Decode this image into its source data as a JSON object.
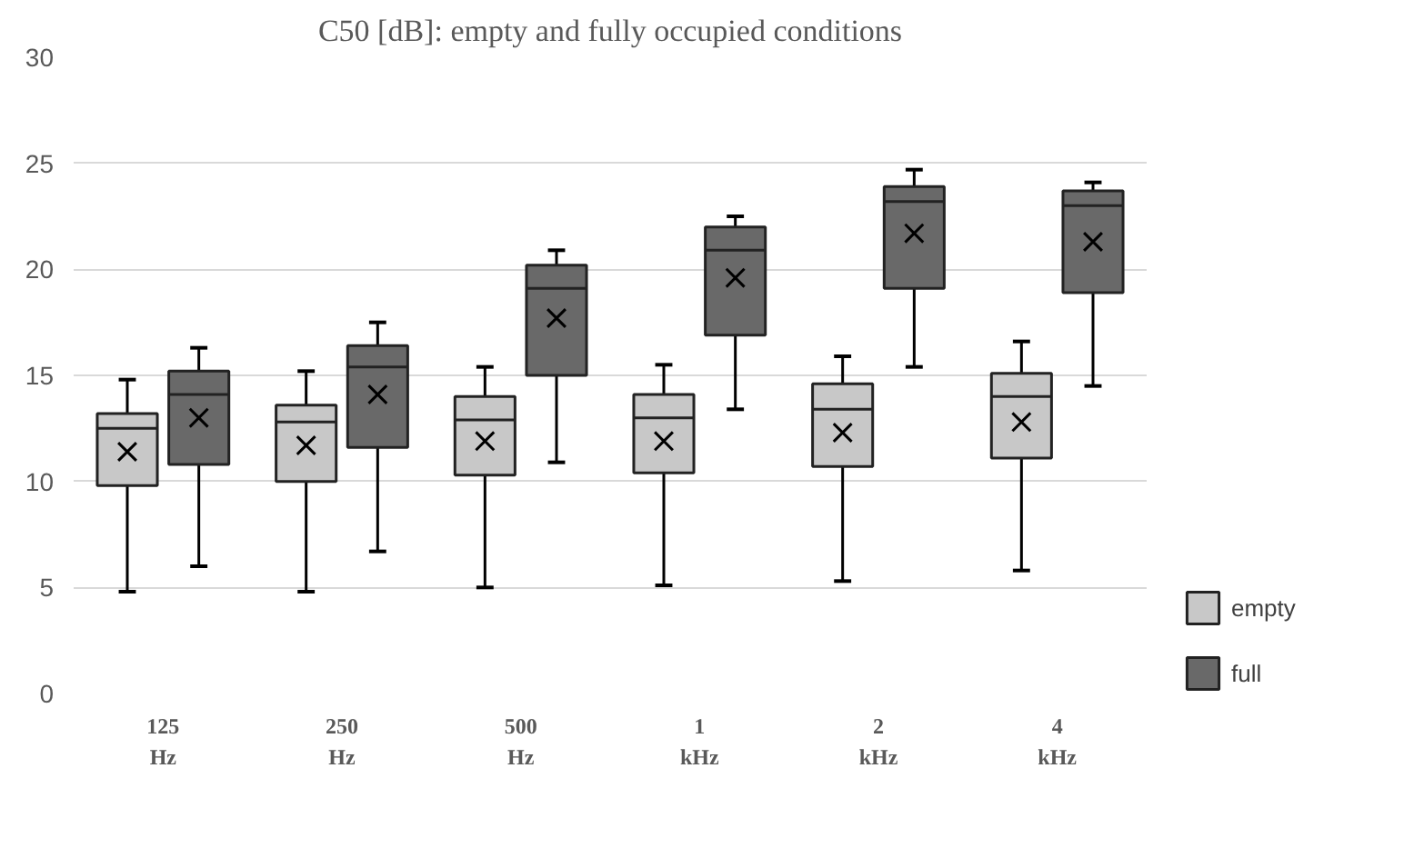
{
  "chart_data": {
    "type": "box",
    "title": "C50 [dB]: empty and fully occupied conditions",
    "categories": [
      "125\nHz",
      "250\nHz",
      "500\nHz",
      "1\nkHz",
      "2\nkHz",
      "4\nkHz"
    ],
    "ylim": [
      0,
      30
    ],
    "yticks": [
      0,
      5,
      10,
      15,
      20,
      25,
      30
    ],
    "grid": "y",
    "legend": "right",
    "marker": "cross",
    "series": [
      {
        "name": "empty",
        "color": "#c8c8c8",
        "boxes": [
          {
            "low": 4.8,
            "q1": 9.8,
            "median": 12.5,
            "q3": 13.2,
            "high": 14.8,
            "mean": 11.4
          },
          {
            "low": 4.8,
            "q1": 10.0,
            "median": 12.8,
            "q3": 13.6,
            "high": 15.2,
            "mean": 11.7
          },
          {
            "low": 5.0,
            "q1": 10.3,
            "median": 12.9,
            "q3": 14.0,
            "high": 15.4,
            "mean": 11.9
          },
          {
            "low": 5.1,
            "q1": 10.4,
            "median": 13.0,
            "q3": 14.1,
            "high": 15.5,
            "mean": 11.9
          },
          {
            "low": 5.3,
            "q1": 10.7,
            "median": 13.4,
            "q3": 14.6,
            "high": 15.9,
            "mean": 12.3
          },
          {
            "low": 5.8,
            "q1": 11.1,
            "median": 14.0,
            "q3": 15.1,
            "high": 16.6,
            "mean": 12.8
          }
        ]
      },
      {
        "name": "full",
        "color": "#696969",
        "boxes": [
          {
            "low": 6.0,
            "q1": 10.8,
            "median": 14.1,
            "q3": 15.2,
            "high": 16.3,
            "mean": 13.0
          },
          {
            "low": 6.7,
            "q1": 11.6,
            "median": 15.4,
            "q3": 16.4,
            "high": 17.5,
            "mean": 14.1
          },
          {
            "low": 10.9,
            "q1": 15.0,
            "median": 19.1,
            "q3": 20.2,
            "high": 20.9,
            "mean": 17.7
          },
          {
            "low": 13.4,
            "q1": 16.9,
            "median": 20.9,
            "q3": 22.0,
            "high": 22.5,
            "mean": 19.6
          },
          {
            "low": 15.4,
            "q1": 19.1,
            "median": 23.2,
            "q3": 23.9,
            "high": 24.7,
            "mean": 21.7
          },
          {
            "low": 14.5,
            "q1": 18.9,
            "median": 23.0,
            "q3": 23.7,
            "high": 24.1,
            "mean": 21.3
          }
        ]
      }
    ]
  }
}
